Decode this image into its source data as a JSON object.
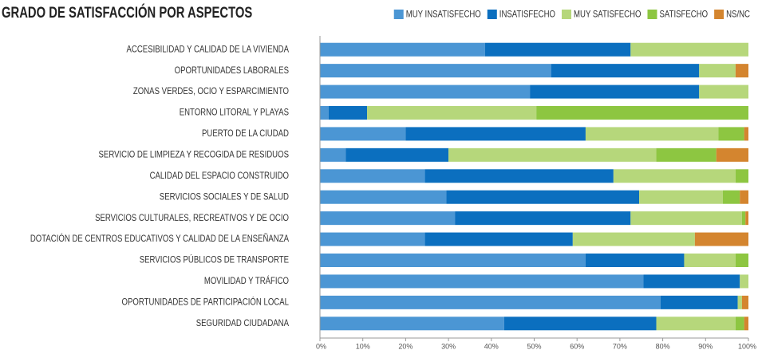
{
  "chart_data": {
    "type": "stacked-bar-horizontal",
    "title": "GRADO DE SATISFACCIÓN POR ASPECTOS",
    "categories": [
      "ACCESIBILIDAD Y CALIDAD DE LA VIVIENDA",
      "OPORTUNIDADES LABORALES",
      "ZONAS VERDES, OCIO Y ESPARCIMIENTO",
      "ENTORNO LITORAL Y PLAYAS",
      "PUERTO DE LA CIUDAD",
      "SERVICIO DE LIMPIEZA Y RECOGIDA DE RESIDUOS",
      "CALIDAD DEL ESPACIO CONSTRUIDO",
      "SERVICIOS SOCIALES Y DE SALUD",
      "SERVICIOS CULTURALES, RECREATIVOS Y DE OCIO",
      "DOTACIÓN DE CENTROS EDUCATIVOS Y CALIDAD DE LA ENSEÑANZA",
      "SERVICIOS PÚBLICOS DE TRANSPORTE",
      "MOVILIDAD Y TRÁFICO",
      "OPORTUNIDADES DE PARTICIPACIÓN LOCAL",
      "SEGURIDAD CIUDADANA"
    ],
    "series": [
      {
        "name": "MUY INSATISFECHO",
        "color": "#4b96d4",
        "values": [
          38.5,
          54,
          49,
          2,
          20,
          6,
          24.5,
          29.5,
          31.5,
          24.5,
          62,
          75.5,
          79.5,
          43
        ]
      },
      {
        "name": "INSATISFECHO",
        "color": "#0b6fbf",
        "values": [
          34,
          34.5,
          39.5,
          9,
          42,
          24,
          44,
          45,
          41,
          34.5,
          23,
          22.5,
          18,
          35.5
        ]
      },
      {
        "name": "MUY SATISFECHO",
        "color": "#b6d77b",
        "values": [
          27.5,
          8.5,
          11.5,
          39.5,
          31,
          48.5,
          28.5,
          19.5,
          26,
          28.5,
          12,
          2,
          1,
          18.5
        ]
      },
      {
        "name": "SATISFECHO",
        "color": "#8dc641",
        "values": [
          0,
          0,
          0,
          49.5,
          6,
          14,
          3,
          4,
          0.8,
          0,
          3,
          0,
          0,
          2
        ]
      },
      {
        "name": "NS/NC",
        "color": "#d4852f",
        "values": [
          0,
          3,
          0,
          0,
          1,
          7.5,
          0,
          2,
          0.7,
          12.5,
          0,
          0,
          1.5,
          1
        ]
      }
    ],
    "xlim": [
      0,
      100
    ],
    "xticks": [
      {
        "value": 0,
        "label": "0%"
      },
      {
        "value": 10,
        "label": "10%"
      },
      {
        "value": 20,
        "label": "20%"
      },
      {
        "value": 30,
        "label": "30%"
      },
      {
        "value": 40,
        "label": "40%"
      },
      {
        "value": 50,
        "label": "50%"
      },
      {
        "value": 60,
        "label": "60%"
      },
      {
        "value": 70,
        "label": "70%"
      },
      {
        "value": 80,
        "label": "80%"
      },
      {
        "value": 90,
        "label": "90%"
      },
      {
        "value": 100,
        "label": "100%"
      }
    ],
    "legend": "top-right"
  }
}
